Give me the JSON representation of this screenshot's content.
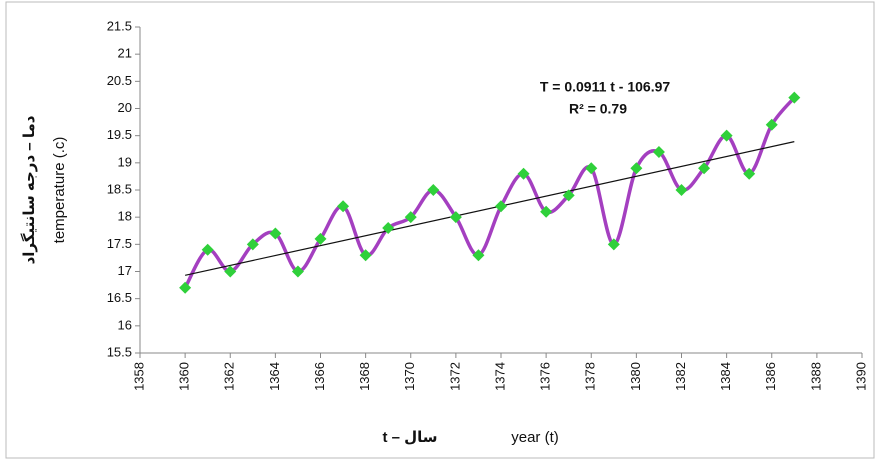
{
  "chart_data": {
    "type": "line",
    "x_label": [
      "t – سال",
      "year (t)"
    ],
    "y_label": [
      "دما – درجه سانتیگراد",
      "temperature (.c)"
    ],
    "annotations": [
      "T = 0.0911 t - 106.97",
      "R² = 0.79"
    ],
    "x": [
      1360,
      1361,
      1362,
      1363,
      1364,
      1365,
      1366,
      1367,
      1368,
      1369,
      1370,
      1371,
      1372,
      1373,
      1374,
      1375,
      1376,
      1377,
      1378,
      1379,
      1380,
      1381,
      1382,
      1383,
      1384,
      1385,
      1386,
      1387
    ],
    "series": [
      {
        "color": "#a43fc0",
        "marker_color": "#2fd03a",
        "values": [
          16.7,
          17.4,
          17.0,
          17.5,
          17.7,
          17.0,
          17.6,
          18.2,
          17.3,
          17.8,
          18.0,
          18.5,
          18.0,
          17.3,
          18.2,
          18.8,
          18.1,
          18.4,
          18.9,
          17.5,
          18.9,
          19.2,
          18.5,
          18.9,
          19.5,
          18.8,
          19.7,
          20.2
        ]
      }
    ],
    "trendline": {
      "x": [
        1360,
        1387
      ],
      "values": [
        16.93,
        19.39
      ],
      "color": "#111111"
    },
    "xlim": [
      1358,
      1390
    ],
    "xticks": [
      1358,
      1360,
      1362,
      1364,
      1366,
      1368,
      1370,
      1372,
      1374,
      1376,
      1378,
      1380,
      1382,
      1384,
      1386,
      1388,
      1390
    ],
    "ylim": [
      15.5,
      21.5
    ],
    "yticks": [
      15.5,
      16,
      16.5,
      17,
      17.5,
      18,
      18.5,
      19,
      19.5,
      20,
      20.5,
      21,
      21.5
    ]
  }
}
